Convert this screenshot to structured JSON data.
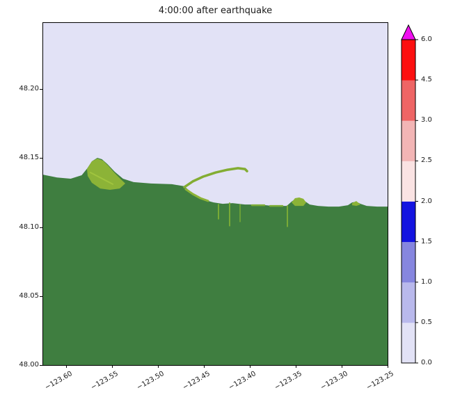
{
  "figure": {
    "background": "#ffffff"
  },
  "chart_data": {
    "type": "heatmap",
    "title": "4:00:00 after earthquake",
    "xlabel": "",
    "ylabel": "",
    "xlim": [
      -123.625,
      -123.25
    ],
    "ylim": [
      48.0,
      48.248
    ],
    "grid": false,
    "x_ticks": [
      -123.6,
      -123.55,
      -123.5,
      -123.45,
      -123.4,
      -123.35,
      -123.3,
      -123.25
    ],
    "x_tick_labels": [
      "−123.60",
      "−123.55",
      "−123.50",
      "−123.45",
      "−123.40",
      "−123.35",
      "−123.30",
      "−123.25"
    ],
    "y_ticks": [
      48.2,
      48.15,
      48.1,
      48.05,
      48.0
    ],
    "y_tick_labels": [
      "48.20",
      "48.15",
      "48.10",
      "48.05",
      "48.00"
    ],
    "colors": {
      "water": "#e2e2f6",
      "land": "#3f7e40",
      "lowland": "#8cb337",
      "spit": "#83ad33",
      "shore": "#7fae38"
    },
    "coastline": [
      [
        -123.625,
        48.138
      ],
      [
        -123.61,
        48.136
      ],
      [
        -123.595,
        48.1351
      ],
      [
        -123.583,
        48.1376
      ],
      [
        -123.577,
        48.1426
      ],
      [
        -123.572,
        48.1477
      ],
      [
        -123.566,
        48.1502
      ],
      [
        -123.561,
        48.1492
      ],
      [
        -123.555,
        48.1457
      ],
      [
        -123.547,
        48.1401
      ],
      [
        -123.538,
        48.1351
      ],
      [
        -123.5265,
        48.1326
      ],
      [
        -123.5076,
        48.1316
      ],
      [
        -123.4848,
        48.1311
      ],
      [
        -123.4712,
        48.1296
      ],
      [
        -123.4644,
        48.1255
      ],
      [
        -123.4568,
        48.122
      ],
      [
        -123.4485,
        48.1195
      ],
      [
        -123.4394,
        48.1179
      ],
      [
        -123.4295,
        48.1169
      ],
      [
        -123.4189,
        48.1174
      ],
      [
        -123.4053,
        48.1164
      ],
      [
        -123.3902,
        48.1164
      ],
      [
        -123.375,
        48.1154
      ],
      [
        -123.3598,
        48.1154
      ],
      [
        -123.3545,
        48.1185
      ],
      [
        -123.3492,
        48.121
      ],
      [
        -123.3439,
        48.1205
      ],
      [
        -123.3394,
        48.1185
      ],
      [
        -123.3348,
        48.1164
      ],
      [
        -123.3258,
        48.1154
      ],
      [
        -123.3144,
        48.1149
      ],
      [
        -123.303,
        48.1149
      ],
      [
        -123.2932,
        48.1159
      ],
      [
        -123.2886,
        48.1179
      ],
      [
        -123.2841,
        48.1184
      ],
      [
        -123.2795,
        48.1169
      ],
      [
        -123.2727,
        48.1154
      ],
      [
        -123.2614,
        48.1149
      ],
      [
        -123.25,
        48.1149
      ]
    ],
    "features": [
      {
        "name": "lowland-west",
        "type": "polygon",
        "color": "#8cb337",
        "points": [
          [
            -123.5773,
            48.1421
          ],
          [
            -123.572,
            48.1477
          ],
          [
            -123.5659,
            48.1497
          ],
          [
            -123.5598,
            48.1482
          ],
          [
            -123.5538,
            48.1442
          ],
          [
            -123.547,
            48.1391
          ],
          [
            -123.5402,
            48.1346
          ],
          [
            -123.5356,
            48.1316
          ],
          [
            -123.5417,
            48.128
          ],
          [
            -123.5523,
            48.127
          ],
          [
            -123.5629,
            48.128
          ],
          [
            -123.572,
            48.1321
          ],
          [
            -123.5765,
            48.1371
          ]
        ]
      },
      {
        "name": "lowland-west-streak",
        "type": "stroke",
        "color": "#a0c43e",
        "width": 2,
        "points": [
          [
            -123.5735,
            48.1396
          ],
          [
            -123.5492,
            48.1311
          ]
        ]
      },
      {
        "name": "dungeness-spit",
        "type": "stroke",
        "color": "#83ad33",
        "width": 3.5,
        "points": [
          [
            -123.4712,
            48.129
          ],
          [
            -123.4621,
            48.1331
          ],
          [
            -123.4508,
            48.1366
          ],
          [
            -123.4371,
            48.1396
          ],
          [
            -123.4242,
            48.1416
          ],
          [
            -123.4129,
            48.1427
          ],
          [
            -123.4053,
            48.1421
          ],
          [
            -123.403,
            48.1406
          ]
        ]
      },
      {
        "name": "spit-base-shore",
        "type": "stroke",
        "color": "#8cb337",
        "width": 3,
        "points": [
          [
            -123.4697,
            48.1275
          ],
          [
            -123.4621,
            48.124
          ],
          [
            -123.4538,
            48.121
          ],
          [
            -123.4455,
            48.119
          ]
        ]
      },
      {
        "name": "creek-1",
        "type": "stroke",
        "color": "#79aa36",
        "width": 2,
        "points": [
          [
            -123.4341,
            48.1164
          ],
          [
            -123.4341,
            48.106
          ]
        ]
      },
      {
        "name": "creek-2",
        "type": "stroke",
        "color": "#79aa36",
        "width": 2,
        "points": [
          [
            -123.422,
            48.1174
          ],
          [
            -123.422,
            48.101
          ]
        ]
      },
      {
        "name": "creek-3",
        "type": "stroke",
        "color": "#79aa36",
        "width": 1.5,
        "points": [
          [
            -123.4106,
            48.1164
          ],
          [
            -123.4106,
            48.104
          ]
        ]
      },
      {
        "name": "creek-4",
        "type": "stroke",
        "color": "#79aa36",
        "width": 2,
        "points": [
          [
            -123.3591,
            48.1154
          ],
          [
            -123.3591,
            48.1005
          ]
        ]
      },
      {
        "name": "coastal-bump",
        "type": "polygon",
        "color": "#8cb337",
        "points": [
          [
            -123.3545,
            48.1179
          ],
          [
            -123.3508,
            48.121
          ],
          [
            -123.3462,
            48.1215
          ],
          [
            -123.3417,
            48.1205
          ],
          [
            -123.3386,
            48.1179
          ],
          [
            -123.3417,
            48.1154
          ],
          [
            -123.3508,
            48.1154
          ]
        ]
      },
      {
        "name": "lowland-east",
        "type": "polygon",
        "color": "#8cb337",
        "points": [
          [
            -123.2886,
            48.1174
          ],
          [
            -123.2841,
            48.1189
          ],
          [
            -123.2795,
            48.1164
          ],
          [
            -123.2841,
            48.1154
          ],
          [
            -123.2886,
            48.1159
          ]
        ]
      },
      {
        "name": "shore-blotch-1",
        "type": "stroke",
        "color": "#7fae38",
        "width": 2.5,
        "points": [
          [
            -123.3977,
            48.1159
          ],
          [
            -123.3841,
            48.1159
          ]
        ]
      },
      {
        "name": "shore-blotch-2",
        "type": "stroke",
        "color": "#7fae38",
        "width": 2.5,
        "points": [
          [
            -123.378,
            48.1154
          ],
          [
            -123.3644,
            48.1154
          ]
        ]
      }
    ],
    "colorbar": {
      "extend": "max",
      "boundaries": [
        0.0,
        0.5,
        1.0,
        1.5,
        2.0,
        2.5,
        3.0,
        4.5,
        6.0
      ],
      "tick_labels": [
        "0.0",
        "0.5",
        "1.0",
        "1.5",
        "2.0",
        "2.5",
        "3.0",
        "4.5",
        "6.0"
      ],
      "band_colors_bottom_to_top": [
        "#e2e2f6",
        "#b9b9ec",
        "#8686df",
        "#1414e0",
        "#fae3e3",
        "#f2b5b5",
        "#ee6565",
        "#fc1010"
      ],
      "over_color": "#f00ff0"
    }
  }
}
